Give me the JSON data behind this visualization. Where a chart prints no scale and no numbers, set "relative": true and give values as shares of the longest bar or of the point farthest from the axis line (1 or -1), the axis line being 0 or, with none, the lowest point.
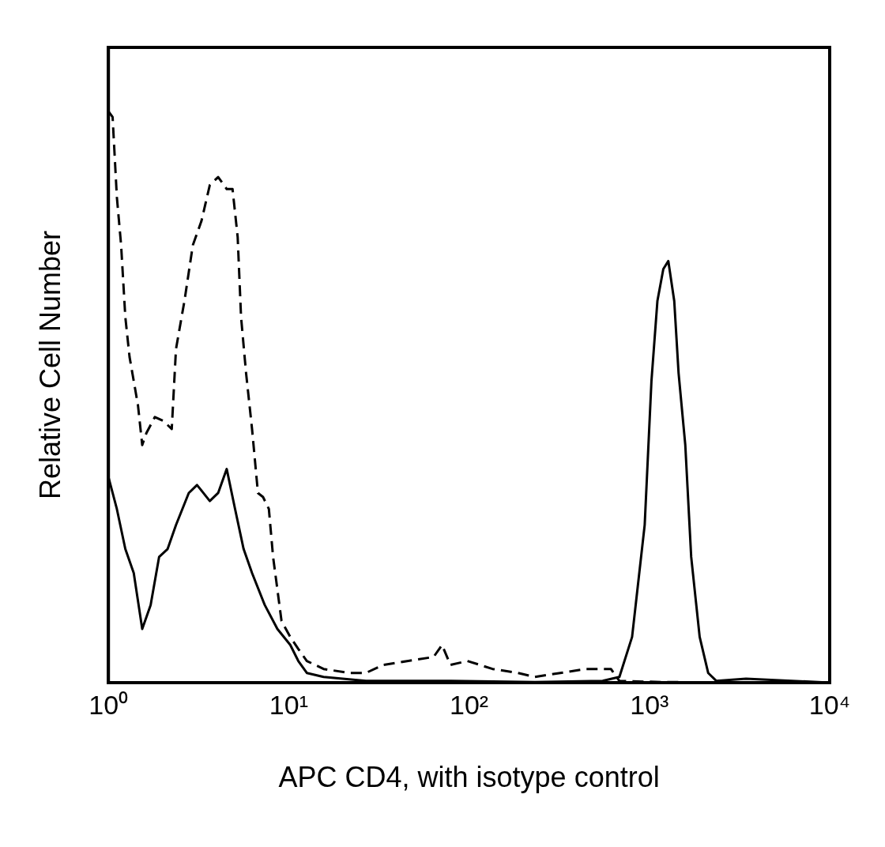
{
  "chart_data": {
    "type": "line",
    "relative": true,
    "log": "x",
    "xlabel": "APC CD4, with isotype control",
    "ylabel": "Relative Cell Number",
    "xlim": [
      1,
      10000
    ],
    "xticks": [
      {
        "value": 1,
        "label": "10⁰"
      },
      {
        "value": 10,
        "label": "10¹"
      },
      {
        "value": 100,
        "label": "10²"
      },
      {
        "value": 1000,
        "label": "10³"
      },
      {
        "value": 10000,
        "label": "10⁴"
      }
    ],
    "grid": false,
    "legend": false,
    "marker": "none",
    "series": [
      {
        "color": "#000000",
        "line_style": "dashed",
        "x": [
          1,
          1.055,
          1.114,
          1.176,
          1.241,
          1.31,
          1.382,
          1.458,
          1.54,
          1.625,
          1.81,
          2.02,
          2.245,
          2.37,
          2.64,
          2.94,
          3.28,
          3.65,
          4.06,
          4.53,
          4.88,
          5.21,
          5.44,
          5.8,
          6.26,
          6.75,
          7.2,
          7.76,
          8.19,
          9.12,
          10.2,
          11.3,
          12.6,
          15.6,
          21.6,
          26.8,
          33.3,
          46,
          63.6,
          70.8,
          78.9,
          97.9,
          135,
          187,
          232,
          321,
          443,
          612,
          682,
          1169,
          10000
        ],
        "values": [
          1,
          0.99,
          0.85,
          0.766,
          0.64,
          0.57,
          0.528,
          0.486,
          0.416,
          0.437,
          0.465,
          0.458,
          0.444,
          0.584,
          0.668,
          0.766,
          0.808,
          0.871,
          0.885,
          0.864,
          0.864,
          0.78,
          0.64,
          0.542,
          0.444,
          0.332,
          0.325,
          0.304,
          0.22,
          0.108,
          0.08,
          0.059,
          0.038,
          0.024,
          0.017,
          0.017,
          0.031,
          0.038,
          0.045,
          0.066,
          0.031,
          0.038,
          0.024,
          0.017,
          0.01,
          0.017,
          0.024,
          0.024,
          0.003,
          0.001,
          0
        ]
      },
      {
        "color": "#000000",
        "line_style": "solid",
        "x": [
          1,
          1.114,
          1.241,
          1.382,
          1.54,
          1.715,
          1.91,
          2.13,
          2.37,
          2.79,
          3.1,
          3.65,
          4.06,
          4.53,
          5.04,
          5.62,
          6.26,
          7.36,
          8.65,
          10.2,
          11.3,
          12.6,
          15.6,
          26.8,
          78.9,
          232,
          550,
          682,
          802,
          942,
          1027,
          1108,
          1195,
          1274,
          1374,
          1452,
          1582,
          1706,
          1901,
          2119,
          2355,
          3436,
          10000
        ],
        "values": [
          0.36,
          0.304,
          0.234,
          0.192,
          0.094,
          0.136,
          0.22,
          0.234,
          0.276,
          0.332,
          0.346,
          0.318,
          0.332,
          0.374,
          0.304,
          0.234,
          0.192,
          0.136,
          0.094,
          0.066,
          0.038,
          0.017,
          0.01,
          0.003,
          0.003,
          0.001,
          0.003,
          0.01,
          0.08,
          0.276,
          0.528,
          0.668,
          0.724,
          0.738,
          0.668,
          0.542,
          0.416,
          0.22,
          0.08,
          0.017,
          0.003,
          0.007,
          0
        ]
      }
    ]
  }
}
